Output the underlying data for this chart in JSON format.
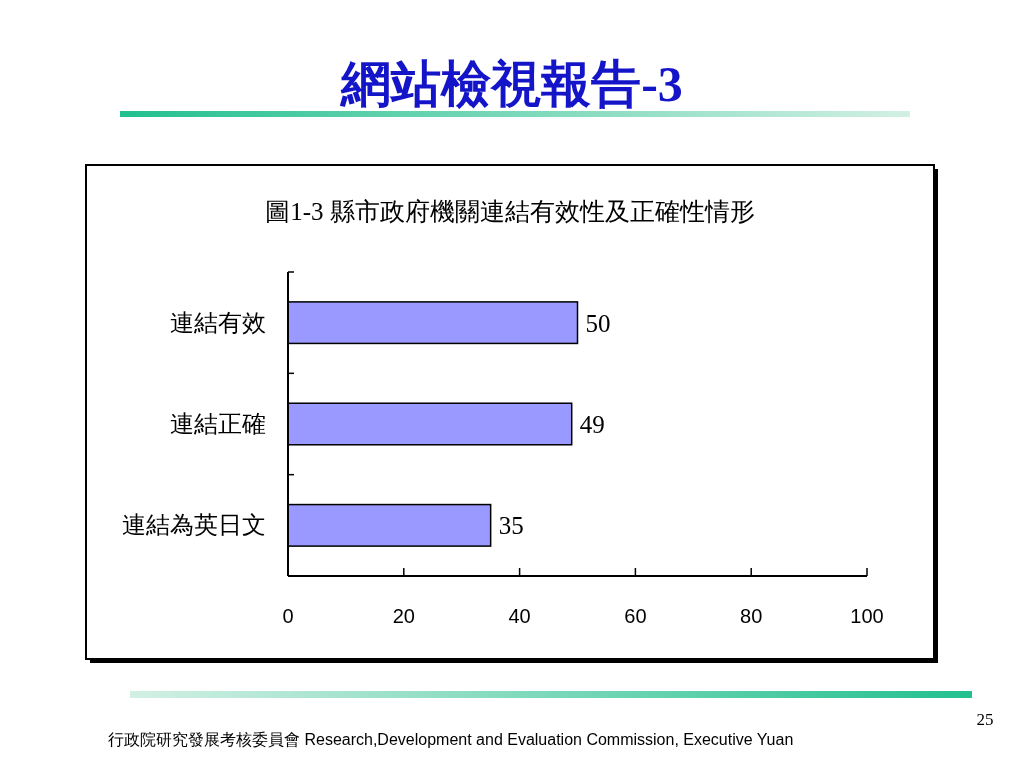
{
  "chart_data": {
    "type": "bar",
    "orientation": "horizontal",
    "title": "網站檢視報告-3",
    "subtitle": "圖1-3 縣市政府機關連結有效性及正確性情形",
    "categories": [
      "連結有效",
      "連結正確",
      "連結為英日文"
    ],
    "values": [
      50,
      49,
      35
    ],
    "color": "#9999ff",
    "xlim": [
      0,
      100
    ],
    "xticks": [
      0,
      20,
      40,
      60,
      80,
      100
    ],
    "data_labels": true,
    "annotations": [
      "行政院研究發展考核委員會 Research,Development and Evaluation Commission, Executive Yuan",
      "25"
    ]
  }
}
